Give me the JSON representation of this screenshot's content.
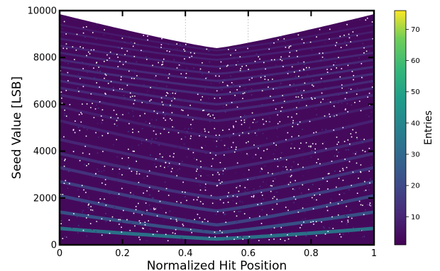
{
  "chart_data": {
    "type": "heatmap",
    "xlabel": "Normalized Hit Position",
    "ylabel": "Seed Value [LSB]",
    "xlim": [
      0,
      1
    ],
    "ylim": [
      0,
      10000
    ],
    "x_ticks": [
      "0",
      "0.2",
      "0.4",
      "0.6",
      "0.8",
      "1"
    ],
    "y_ticks": [
      "0",
      "2000",
      "4000",
      "6000",
      "8000",
      "10000"
    ],
    "colorbar": {
      "label": "Entries",
      "range": [
        1,
        76
      ],
      "ticks": [
        "10",
        "20",
        "30",
        "40",
        "50",
        "60",
        "70"
      ],
      "colormap": "viridis"
    },
    "grid": false,
    "bands": [
      {
        "edge_value": 700,
        "center_value": 250,
        "peak_entries": 45
      },
      {
        "edge_value": 1400,
        "center_value": 520,
        "peak_entries": 30
      },
      {
        "edge_value": 2100,
        "center_value": 850,
        "peak_entries": 25
      },
      {
        "edge_value": 2700,
        "center_value": 1450,
        "peak_entries": 22
      },
      {
        "edge_value": 3300,
        "center_value": 2000,
        "peak_entries": 18
      },
      {
        "edge_value": 3900,
        "center_value": 2600,
        "peak_entries": 15
      },
      {
        "edge_value": 4500,
        "center_value": 3200,
        "peak_entries": 13
      },
      {
        "edge_value": 5300,
        "center_value": 3900,
        "peak_entries": 11
      },
      {
        "edge_value": 5900,
        "center_value": 4600,
        "peak_entries": 10
      },
      {
        "edge_value": 6400,
        "center_value": 5300,
        "peak_entries": 12
      },
      {
        "edge_value": 6700,
        "center_value": 5700,
        "peak_entries": 14
      },
      {
        "edge_value": 7000,
        "center_value": 6000,
        "peak_entries": 14
      },
      {
        "edge_value": 7300,
        "center_value": 6400,
        "peak_entries": 15
      },
      {
        "edge_value": 7600,
        "center_value": 6700,
        "peak_entries": 15
      },
      {
        "edge_value": 7900,
        "center_value": 7000,
        "peak_entries": 14
      },
      {
        "edge_value": 8200,
        "center_value": 7300,
        "peak_entries": 13
      },
      {
        "edge_value": 8500,
        "center_value": 7600,
        "peak_entries": 12
      },
      {
        "edge_value": 8800,
        "center_value": 7900,
        "peak_entries": 11
      },
      {
        "edge_value": 9100,
        "center_value": 8100,
        "peak_entries": 10
      },
      {
        "edge_value": 9400,
        "center_value": 8300,
        "peak_entries": 9
      }
    ],
    "upper_boundary": {
      "edge_value": 9850,
      "center_value": 8400
    },
    "colors": {
      "low": "#440154",
      "mid": "#3b528b",
      "high": "#fde725"
    }
  }
}
